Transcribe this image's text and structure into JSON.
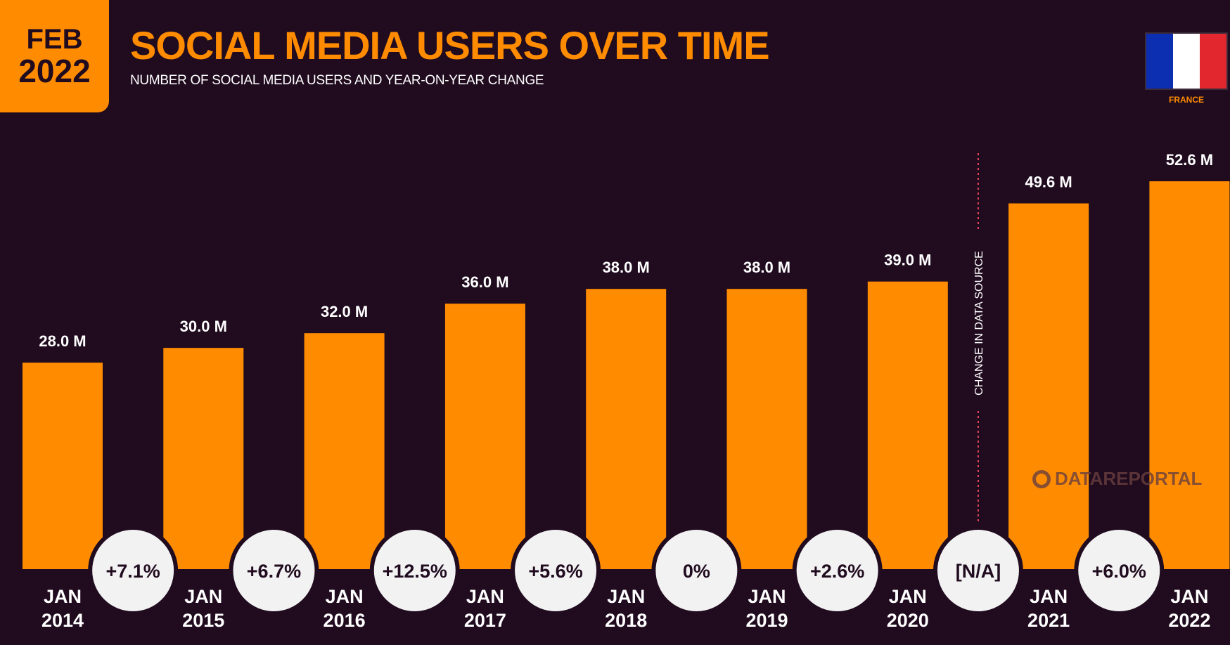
{
  "badge": {
    "month": "FEB",
    "year": "2022"
  },
  "header": {
    "title": "SOCIAL MEDIA USERS OVER TIME",
    "subtitle": "NUMBER OF SOCIAL MEDIA USERS AND YEAR-ON-YEAR CHANGE"
  },
  "country": {
    "label": "FRANCE",
    "flag_colors": [
      "#0b2fb0",
      "#ffffff",
      "#e3272f"
    ]
  },
  "divider_label": "CHANGE IN DATA SOURCE",
  "watermark": "DATAREPORTAL",
  "colors": {
    "background": "#200b1f",
    "bar": "#ff8c00",
    "bubble": "#f2f2f2",
    "bubble_text": "#200b1f",
    "text": "#ffffff"
  },
  "chart_data": {
    "type": "bar",
    "categories": [
      [
        "JAN",
        "2014"
      ],
      [
        "JAN",
        "2015"
      ],
      [
        "JAN",
        "2016"
      ],
      [
        "JAN",
        "2017"
      ],
      [
        "JAN",
        "2018"
      ],
      [
        "JAN",
        "2019"
      ],
      [
        "JAN",
        "2020"
      ],
      [
        "JAN",
        "2021"
      ],
      [
        "JAN",
        "2022"
      ]
    ],
    "values": [
      28.0,
      30.0,
      32.0,
      36.0,
      38.0,
      38.0,
      39.0,
      49.6,
      52.6
    ],
    "value_labels": [
      "28.0 M",
      "30.0 M",
      "32.0 M",
      "36.0 M",
      "38.0 M",
      "38.0 M",
      "39.0 M",
      "49.6 M",
      "52.6 M"
    ],
    "unit": "M",
    "changes": [
      "+7.1%",
      "+6.7%",
      "+12.5%",
      "+5.6%",
      "0%",
      "+2.6%",
      "[N/A]",
      "+6.0%"
    ],
    "data_source_change_after_index": 6,
    "ylim": [
      0,
      52.6
    ],
    "grid": false,
    "legend": "none"
  }
}
